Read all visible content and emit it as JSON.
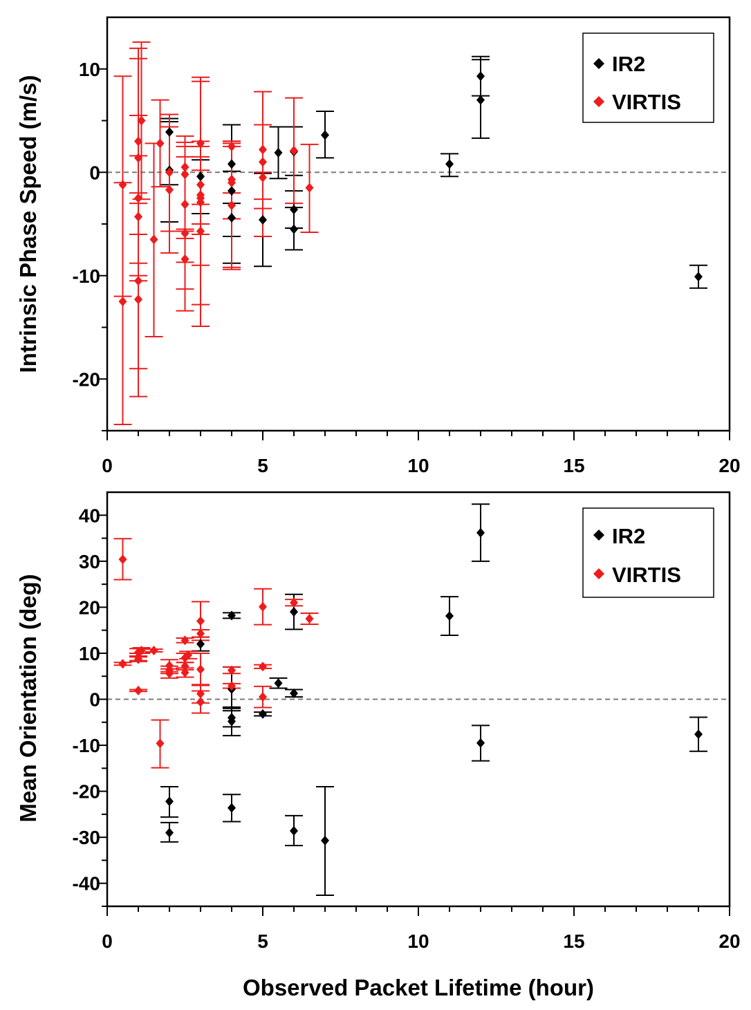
{
  "colors": {
    "ir2": "#000000",
    "virtis": "#ee1c1c",
    "zero_line": "#7a7a7a"
  },
  "chart_data": [
    {
      "type": "scatter",
      "ylabel": "Intrinsic Phase Speed (m/s)",
      "xlabel": "",
      "xlim": [
        0,
        20
      ],
      "ylim": [
        -25,
        15
      ],
      "x_ticks": [
        "0",
        "5",
        "10",
        "15",
        "20"
      ],
      "y_ticks": [
        {
          "value": -20,
          "label": "-20"
        },
        {
          "value": -10,
          "label": "-10"
        },
        {
          "value": 0,
          "label": "0"
        },
        {
          "value": 10,
          "label": "10"
        }
      ],
      "reference_line": 0,
      "legend": {
        "position": "top-right",
        "entries": [
          {
            "name": "IR2",
            "color": "#000000"
          },
          {
            "name": "VIRTIS",
            "color": "#ee1c1c"
          }
        ]
      },
      "series": [
        {
          "name": "IR2",
          "color": "#000000",
          "points": [
            {
              "x": 2,
              "y": 3.9,
              "lo": -1.2,
              "hi": 4.9
            },
            {
              "x": 2,
              "y": 0.2,
              "lo": -4.8,
              "hi": 5.2
            },
            {
              "x": 3,
              "y": -0.4,
              "lo": -4.0,
              "hi": 1.2
            },
            {
              "x": 4,
              "y": 0.8,
              "lo": -3.0,
              "hi": 4.6
            },
            {
              "x": 4,
              "y": -1.8,
              "lo": -6.2,
              "hi": 3.0
            },
            {
              "x": 4,
              "y": -4.4,
              "lo": -8.8,
              "hi": 0.1
            },
            {
              "x": 5,
              "y": -4.6,
              "lo": -9.1,
              "hi": -0.1
            },
            {
              "x": 5.5,
              "y": 1.9,
              "lo": -0.6,
              "hi": 4.4
            },
            {
              "x": 6,
              "y": -3.6,
              "lo": -5.4,
              "hi": -1.8
            },
            {
              "x": 6,
              "y": -5.5,
              "lo": -7.5,
              "hi": -3.4
            },
            {
              "x": 6,
              "y": 2.0,
              "lo": -0.3,
              "hi": 4.4
            },
            {
              "x": 7,
              "y": 3.6,
              "lo": 1.4,
              "hi": 5.9
            },
            {
              "x": 11,
              "y": 0.8,
              "lo": -0.4,
              "hi": 1.8
            },
            {
              "x": 12,
              "y": 9.3,
              "lo": 7.4,
              "hi": 11.2
            },
            {
              "x": 12,
              "y": 7.0,
              "lo": 3.3,
              "hi": 10.9
            },
            {
              "x": 19,
              "y": -10.1,
              "lo": -11.2,
              "hi": -9.0
            }
          ]
        },
        {
          "name": "VIRTIS",
          "color": "#ee1c1c",
          "points": [
            {
              "x": 0.5,
              "y": -1.2,
              "lo": -12.0,
              "hi": 9.3
            },
            {
              "x": 0.5,
              "y": -12.5,
              "lo": -24.4,
              "hi": -1.0
            },
            {
              "x": 1,
              "y": 3.0,
              "lo": -6.0,
              "hi": 12.0
            },
            {
              "x": 1,
              "y": 1.4,
              "lo": -8.8,
              "hi": 11.0
            },
            {
              "x": 1,
              "y": -2.5,
              "lo": -10.5,
              "hi": 5.5
            },
            {
              "x": 1,
              "y": -4.3,
              "lo": -10.0,
              "hi": 1.6
            },
            {
              "x": 1,
              "y": -10.5,
              "lo": -19.0,
              "hi": -2.0
            },
            {
              "x": 1,
              "y": -12.3,
              "lo": -21.7,
              "hi": -3.0
            },
            {
              "x": 1.1,
              "y": 5.0,
              "lo": -2.6,
              "hi": 12.6
            },
            {
              "x": 1.5,
              "y": -6.5,
              "lo": -15.9,
              "hi": 2.8
            },
            {
              "x": 1.7,
              "y": 2.8,
              "lo": -1.4,
              "hi": 7.0
            },
            {
              "x": 2,
              "y": 0.0,
              "lo": -5.7,
              "hi": 5.6
            },
            {
              "x": 2,
              "y": -1.7,
              "lo": -7.8,
              "hi": 4.4
            },
            {
              "x": 2.5,
              "y": 0.5,
              "lo": -6.4,
              "hi": 3.5
            },
            {
              "x": 2.5,
              "y": -0.2,
              "lo": -5.7,
              "hi": 2.9
            },
            {
              "x": 2.5,
              "y": -3.1,
              "lo": -8.7,
              "hi": 2.5
            },
            {
              "x": 2.5,
              "y": -5.9,
              "lo": -13.4,
              "hi": 1.5
            },
            {
              "x": 2.5,
              "y": -8.4,
              "lo": -11.3,
              "hi": -5.5
            },
            {
              "x": 3,
              "y": 2.8,
              "lo": -3.1,
              "hi": 8.8
            },
            {
              "x": 3,
              "y": -1.2,
              "lo": -5.0,
              "hi": 2.5
            },
            {
              "x": 3,
              "y": -2.2,
              "lo": -9.0,
              "hi": 9.2
            },
            {
              "x": 3,
              "y": -2.9,
              "lo": -6.0,
              "hi": 0.2
            },
            {
              "x": 3,
              "y": -5.7,
              "lo": -12.8,
              "hi": 1.5
            },
            {
              "x": 3,
              "y": -2.5,
              "lo": -14.9,
              "hi": 3.0
            },
            {
              "x": 4,
              "y": 2.5,
              "lo": -2.0,
              "hi": 3.0
            },
            {
              "x": 4,
              "y": -0.7,
              "lo": -4.5,
              "hi": 3.0
            },
            {
              "x": 4,
              "y": -3.2,
              "lo": -9.2,
              "hi": 2.8
            },
            {
              "x": 4,
              "y": -1.0,
              "lo": -9.4,
              "hi": 2.5
            },
            {
              "x": 5,
              "y": 2.2,
              "lo": -3.5,
              "hi": 7.8
            },
            {
              "x": 5,
              "y": 1.0,
              "lo": -2.6,
              "hi": 4.6
            },
            {
              "x": 5,
              "y": -0.5,
              "lo": -6.2,
              "hi": 0.0
            },
            {
              "x": 6,
              "y": 2.1,
              "lo": -3.0,
              "hi": 7.2
            },
            {
              "x": 6.5,
              "y": -1.5,
              "lo": -5.8,
              "hi": 2.7
            }
          ]
        }
      ]
    },
    {
      "type": "scatter",
      "ylabel": "Mean Orientation (deg)",
      "xlabel": "Observed Packet Lifetime (hour)",
      "xlim": [
        0,
        20
      ],
      "ylim": [
        -45,
        45
      ],
      "x_ticks": [
        "0",
        "5",
        "10",
        "15",
        "20"
      ],
      "y_ticks": [
        {
          "value": -40,
          "label": "-40"
        },
        {
          "value": -30,
          "label": "-30"
        },
        {
          "value": -20,
          "label": "-20"
        },
        {
          "value": -10,
          "label": "-10"
        },
        {
          "value": 0,
          "label": "0"
        },
        {
          "value": 10,
          "label": "10"
        },
        {
          "value": 20,
          "label": "20"
        },
        {
          "value": 30,
          "label": "30"
        },
        {
          "value": 40,
          "label": "40"
        }
      ],
      "reference_line": 0,
      "legend": {
        "position": "top-right",
        "entries": [
          {
            "name": "IR2",
            "color": "#000000"
          },
          {
            "name": "VIRTIS",
            "color": "#ee1c1c"
          }
        ]
      },
      "series": [
        {
          "name": "IR2",
          "color": "#000000",
          "points": [
            {
              "x": 2,
              "y": -22.2,
              "lo": -25.6,
              "hi": -19.0
            },
            {
              "x": 2,
              "y": -29.0,
              "lo": -31.0,
              "hi": -26.8
            },
            {
              "x": 3,
              "y": 12.0,
              "lo": 10.5,
              "hi": 13.5
            },
            {
              "x": 4,
              "y": 18.2,
              "lo": 17.6,
              "hi": 18.8
            },
            {
              "x": 4,
              "y": 2.2,
              "lo": -2.5,
              "hi": 7.0
            },
            {
              "x": 4,
              "y": -4.0,
              "lo": -6.0,
              "hi": -2.0
            },
            {
              "x": 4,
              "y": -4.8,
              "lo": -7.9,
              "hi": -1.7
            },
            {
              "x": 4,
              "y": -23.6,
              "lo": -26.6,
              "hi": -20.7
            },
            {
              "x": 5,
              "y": -3.2,
              "lo": -3.6,
              "hi": -2.8
            },
            {
              "x": 5.5,
              "y": 3.5,
              "lo": 2.4,
              "hi": 4.6
            },
            {
              "x": 6,
              "y": 1.3,
              "lo": 0.5,
              "hi": 2.1
            },
            {
              "x": 6,
              "y": 19.0,
              "lo": 15.2,
              "hi": 22.8
            },
            {
              "x": 6,
              "y": -28.6,
              "lo": -31.8,
              "hi": -25.3
            },
            {
              "x": 7,
              "y": -30.7,
              "lo": -42.6,
              "hi": -19.0
            },
            {
              "x": 11,
              "y": 18.1,
              "lo": 13.9,
              "hi": 22.3
            },
            {
              "x": 12,
              "y": 36.2,
              "lo": 30.0,
              "hi": 42.4
            },
            {
              "x": 12,
              "y": -9.5,
              "lo": -13.4,
              "hi": -5.7
            },
            {
              "x": 19,
              "y": -7.6,
              "lo": -11.3,
              "hi": -3.9
            }
          ]
        },
        {
          "name": "VIRTIS",
          "color": "#ee1c1c",
          "points": [
            {
              "x": 0.5,
              "y": 30.4,
              "lo": 26.0,
              "hi": 34.9
            },
            {
              "x": 0.5,
              "y": 7.7,
              "lo": 7.4,
              "hi": 8.0
            },
            {
              "x": 1,
              "y": 10.2,
              "lo": 9.4,
              "hi": 11.0
            },
            {
              "x": 1,
              "y": 9.2,
              "lo": 8.4,
              "hi": 10.0
            },
            {
              "x": 1,
              "y": 8.7,
              "lo": 8.2,
              "hi": 9.2
            },
            {
              "x": 1,
              "y": 1.9,
              "lo": 1.7,
              "hi": 2.1
            },
            {
              "x": 1.1,
              "y": 10.6,
              "lo": 10.0,
              "hi": 11.2
            },
            {
              "x": 1.5,
              "y": 10.6,
              "lo": 10.3,
              "hi": 10.9
            },
            {
              "x": 1.7,
              "y": -9.6,
              "lo": -14.9,
              "hi": -4.5
            },
            {
              "x": 2,
              "y": 7.3,
              "lo": 6.0,
              "hi": 8.6
            },
            {
              "x": 2,
              "y": 6.4,
              "lo": 5.6,
              "hi": 7.2
            },
            {
              "x": 2,
              "y": 5.6,
              "lo": 4.6,
              "hi": 6.6
            },
            {
              "x": 2.5,
              "y": 12.8,
              "lo": 12.3,
              "hi": 13.3
            },
            {
              "x": 2.5,
              "y": 9.0,
              "lo": 8.0,
              "hi": 10.0
            },
            {
              "x": 2.5,
              "y": 7.2,
              "lo": 6.4,
              "hi": 8.0
            },
            {
              "x": 2.5,
              "y": 5.8,
              "lo": 4.8,
              "hi": 6.8
            },
            {
              "x": 2.6,
              "y": 9.6,
              "lo": 8.8,
              "hi": 10.4
            },
            {
              "x": 3,
              "y": 17.0,
              "lo": 12.8,
              "hi": 21.2
            },
            {
              "x": 3,
              "y": 14.3,
              "lo": 13.5,
              "hi": 15.1
            },
            {
              "x": 3,
              "y": 6.5,
              "lo": 3.0,
              "hi": 10.0
            },
            {
              "x": 3,
              "y": 1.2,
              "lo": -0.8,
              "hi": 3.2
            },
            {
              "x": 3,
              "y": -0.6,
              "lo": -3.0,
              "hi": 1.8
            },
            {
              "x": 4,
              "y": 6.3,
              "lo": 5.6,
              "hi": 7.0
            },
            {
              "x": 4,
              "y": 2.9,
              "lo": 2.4,
              "hi": 3.4
            },
            {
              "x": 5,
              "y": 20.1,
              "lo": 16.2,
              "hi": 24.0
            },
            {
              "x": 5,
              "y": 7.1,
              "lo": 6.7,
              "hi": 7.5
            },
            {
              "x": 5,
              "y": 0.5,
              "lo": -1.8,
              "hi": 2.8
            },
            {
              "x": 6,
              "y": 21.0,
              "lo": 20.3,
              "hi": 21.7
            },
            {
              "x": 6.5,
              "y": 17.5,
              "lo": 16.3,
              "hi": 18.7
            }
          ]
        }
      ]
    }
  ]
}
